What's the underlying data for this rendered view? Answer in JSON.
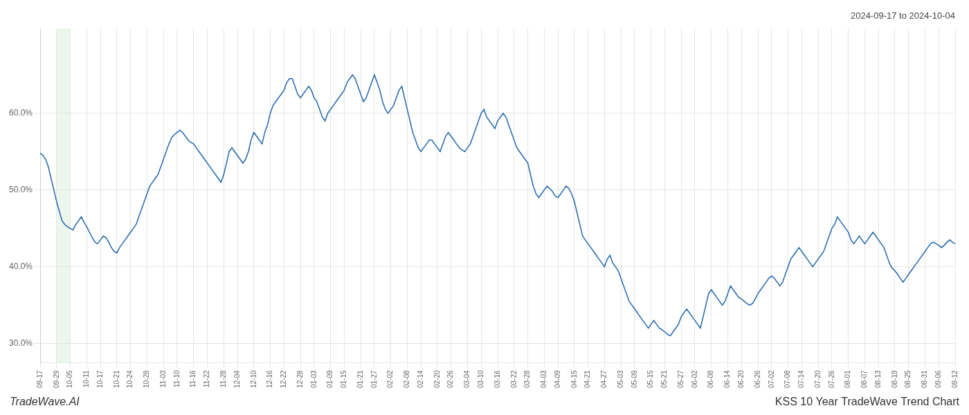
{
  "chart_data": {
    "type": "line",
    "title": "2024-09-17 to 2024-10-04",
    "annotations": [
      "TradeWave.AI",
      "KSS 10 Year TradeWave Trend Chart"
    ],
    "color": "#2166ac",
    "grid": true,
    "span": {
      "from": "09-29",
      "to": "10-05",
      "color": "#d6ead6"
    },
    "ylim": [
      27.5,
      71.0
    ],
    "yticks": [
      {
        "value": 30.0,
        "label": "30.0%"
      },
      {
        "value": 40.0,
        "label": "40.0%"
      },
      {
        "value": 50.0,
        "label": "50.0%"
      },
      {
        "value": 60.0,
        "label": "60.0%"
      }
    ],
    "categories": [
      "09-17",
      null,
      null,
      null,
      null,
      null,
      "09-29",
      null,
      null,
      null,
      null,
      "10-05",
      null,
      null,
      null,
      null,
      null,
      "10-11",
      null,
      null,
      null,
      null,
      "10-17",
      null,
      null,
      null,
      null,
      null,
      "10-21",
      null,
      null,
      null,
      null,
      "10-24",
      null,
      null,
      null,
      null,
      null,
      "10-28",
      null,
      null,
      null,
      null,
      null,
      "11-03",
      null,
      null,
      null,
      null,
      "11-10",
      null,
      null,
      null,
      null,
      null,
      "11-16",
      null,
      null,
      null,
      null,
      "11-22",
      null,
      null,
      null,
      null,
      null,
      "11-28",
      null,
      null,
      null,
      null,
      "12-04",
      null,
      null,
      null,
      null,
      null,
      "12-10",
      null,
      null,
      null,
      null,
      null,
      "12-16",
      null,
      null,
      null,
      null,
      "12-22",
      null,
      null,
      null,
      null,
      null,
      "12-28",
      null,
      null,
      null,
      null,
      "01-03",
      null,
      null,
      null,
      null,
      null,
      "01-09",
      null,
      null,
      null,
      null,
      "01-15",
      null,
      null,
      null,
      null,
      null,
      "01-21",
      null,
      null,
      null,
      null,
      "01-27",
      null,
      null,
      null,
      null,
      null,
      "02-02",
      null,
      null,
      null,
      null,
      null,
      "02-08",
      null,
      null,
      null,
      null,
      "02-14",
      null,
      null,
      null,
      null,
      null,
      "02-20",
      null,
      null,
      null,
      null,
      "02-26",
      null,
      null,
      null,
      null,
      null,
      "03-04",
      null,
      null,
      null,
      null,
      "03-10",
      null,
      null,
      null,
      null,
      null,
      "03-16",
      null,
      null,
      null,
      null,
      null,
      "03-22",
      null,
      null,
      null,
      null,
      "03-28",
      null,
      null,
      null,
      null,
      null,
      "04-03",
      null,
      null,
      null,
      null,
      "04-09",
      null,
      null,
      null,
      null,
      null,
      "04-15",
      null,
      null,
      null,
      null,
      "04-21",
      null,
      null,
      null,
      null,
      null,
      "04-27",
      null,
      null,
      null,
      null,
      null,
      "05-03",
      null,
      null,
      null,
      null,
      "05-09",
      null,
      null,
      null,
      null,
      null,
      "05-15",
      null,
      null,
      null,
      null,
      "05-21",
      null,
      null,
      null,
      null,
      null,
      "05-27",
      null,
      null,
      null,
      null,
      "06-02",
      null,
      null,
      null,
      null,
      null,
      "06-08",
      null,
      null,
      null,
      null,
      null,
      "06-14",
      null,
      null,
      null,
      null,
      "06-20",
      null,
      null,
      null,
      null,
      null,
      "06-26",
      null,
      null,
      null,
      null,
      "07-02",
      null,
      null,
      null,
      null,
      null,
      "07-08",
      null,
      null,
      null,
      null,
      "07-14",
      null,
      null,
      null,
      null,
      null,
      "07-20",
      null,
      null,
      null,
      null,
      "07-26",
      null,
      null,
      null,
      null,
      null,
      "08-01",
      null,
      null,
      null,
      null,
      null,
      "08-07",
      null,
      null,
      null,
      null,
      "08-13",
      null,
      null,
      null,
      null,
      null,
      "08-19",
      null,
      null,
      null,
      null,
      "08-25",
      null,
      null,
      null,
      null,
      null,
      "08-31",
      null,
      null,
      null,
      null,
      "09-06",
      null,
      null,
      null,
      null,
      null,
      "09-12"
    ],
    "values": [
      54.8,
      54.5,
      54.0,
      53.0,
      51.5,
      50.0,
      48.5,
      47.2,
      46.0,
      45.5,
      45.2,
      45.0,
      44.8,
      45.5,
      46.0,
      46.5,
      45.8,
      45.2,
      44.5,
      43.8,
      43.2,
      43.0,
      43.5,
      44.0,
      43.8,
      43.2,
      42.5,
      42.0,
      41.8,
      42.5,
      43.0,
      43.5,
      44.0,
      44.5,
      45.0,
      45.5,
      46.5,
      47.5,
      48.5,
      49.5,
      50.5,
      51.0,
      51.5,
      52.0,
      53.0,
      54.0,
      55.0,
      56.0,
      56.8,
      57.2,
      57.5,
      57.8,
      57.5,
      57.0,
      56.5,
      56.2,
      56.0,
      55.5,
      55.0,
      54.5,
      54.0,
      53.5,
      53.0,
      52.5,
      52.0,
      51.5,
      51.0,
      52.0,
      53.5,
      55.0,
      55.5,
      55.0,
      54.5,
      54.0,
      53.5,
      54.0,
      55.0,
      56.5,
      57.5,
      57.0,
      56.5,
      56.0,
      57.5,
      58.5,
      60.0,
      61.0,
      61.5,
      62.0,
      62.5,
      63.0,
      64.0,
      64.5,
      64.5,
      63.5,
      62.5,
      62.0,
      62.5,
      63.0,
      63.5,
      63.0,
      62.0,
      61.5,
      60.5,
      59.5,
      59.0,
      60.0,
      60.5,
      61.0,
      61.5,
      62.0,
      62.5,
      63.0,
      64.0,
      64.5,
      65.0,
      64.5,
      63.5,
      62.5,
      61.5,
      62.0,
      63.0,
      64.0,
      65.0,
      64.0,
      63.0,
      61.5,
      60.5,
      60.0,
      60.5,
      61.0,
      62.0,
      63.0,
      63.5,
      62.0,
      60.5,
      59.0,
      57.5,
      56.5,
      55.5,
      55.0,
      55.5,
      56.0,
      56.5,
      56.5,
      56.0,
      55.5,
      55.0,
      56.0,
      57.0,
      57.5,
      57.0,
      56.5,
      56.0,
      55.5,
      55.2,
      55.0,
      55.5,
      56.0,
      57.0,
      58.0,
      59.0,
      60.0,
      60.5,
      59.5,
      59.0,
      58.5,
      58.0,
      59.0,
      59.5,
      60.0,
      59.5,
      58.5,
      57.5,
      56.5,
      55.5,
      55.0,
      54.5,
      54.0,
      53.5,
      52.0,
      50.5,
      49.5,
      49.0,
      49.5,
      50.0,
      50.5,
      50.2,
      49.8,
      49.2,
      49.0,
      49.5,
      50.0,
      50.5,
      50.2,
      49.5,
      48.5,
      47.0,
      45.5,
      44.0,
      43.5,
      43.0,
      42.5,
      42.0,
      41.5,
      41.0,
      40.5,
      40.0,
      41.0,
      41.5,
      40.5,
      40.0,
      39.5,
      38.5,
      37.5,
      36.5,
      35.5,
      35.0,
      34.5,
      34.0,
      33.5,
      33.0,
      32.5,
      32.0,
      32.5,
      33.0,
      32.5,
      32.0,
      31.8,
      31.5,
      31.2,
      31.0,
      31.5,
      32.0,
      32.5,
      33.5,
      34.0,
      34.5,
      34.0,
      33.5,
      33.0,
      32.5,
      32.0,
      33.5,
      35.0,
      36.5,
      37.0,
      36.5,
      36.0,
      35.5,
      35.0,
      35.5,
      36.5,
      37.5,
      37.0,
      36.5,
      36.0,
      35.8,
      35.5,
      35.2,
      35.0,
      35.2,
      35.8,
      36.5,
      37.0,
      37.5,
      38.0,
      38.5,
      38.8,
      38.5,
      38.0,
      37.5,
      38.0,
      39.0,
      40.0,
      41.0,
      41.5,
      42.0,
      42.5,
      42.0,
      41.5,
      41.0,
      40.5,
      40.0,
      40.5,
      41.0,
      41.5,
      42.0,
      43.0,
      44.0,
      45.0,
      45.5,
      46.5,
      46.0,
      45.5,
      45.0,
      44.5,
      43.5,
      43.0,
      43.5,
      44.0,
      43.5,
      43.0,
      43.5,
      44.0,
      44.5,
      44.0,
      43.5,
      43.0,
      42.5,
      41.5,
      40.5,
      39.8,
      39.5,
      39.0,
      38.5,
      38.0,
      38.5,
      39.0,
      39.5,
      40.0,
      40.5,
      41.0,
      41.5,
      42.0,
      42.5,
      43.0,
      43.2,
      43.0,
      42.8,
      42.5,
      42.8,
      43.2,
      43.5,
      43.2,
      43.0
    ]
  }
}
